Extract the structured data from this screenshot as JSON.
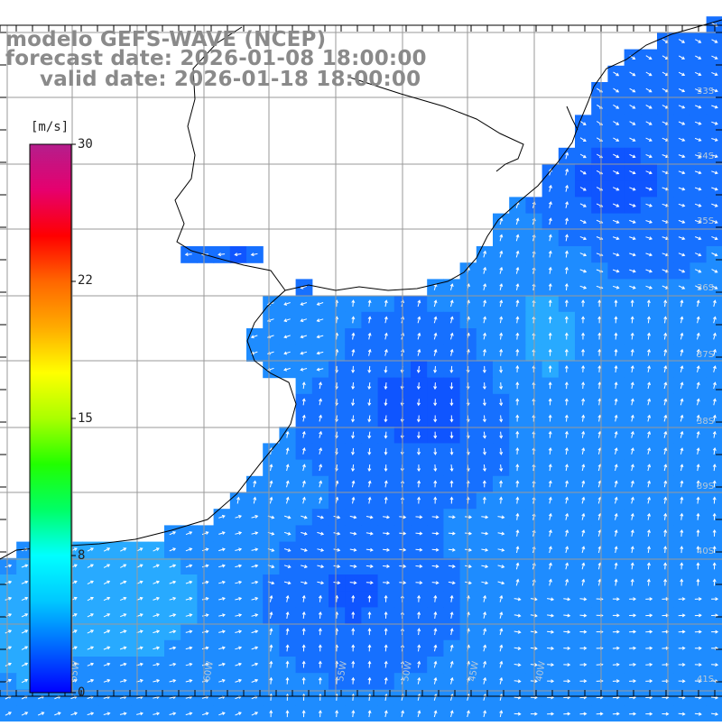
{
  "title": {
    "line1": "modelo GEFS-WAVE (NCEP)",
    "line2": "forecast date: 2026-01-08 18:00:00",
    "line3": "valid date: 2026-01-18 18:00:00"
  },
  "colorbar": {
    "unit": "[m/s]",
    "ticks": [
      "30",
      "22",
      "15",
      "8",
      "0"
    ],
    "range": [
      0,
      30
    ],
    "colors": [
      "#0000ff",
      "#0066ff",
      "#00c8ff",
      "#00ffff",
      "#00ff66",
      "#22ff00",
      "#aaff00",
      "#ffff00",
      "#ffaa00",
      "#ff6600",
      "#ff0000",
      "#e6006e",
      "#b41e8c"
    ]
  },
  "map": {
    "variable": "wind speed and direction",
    "longitude_labels": [
      "65W",
      "60W",
      "55W",
      "50W",
      "45W",
      "40W"
    ],
    "latitude_labels": [
      "33S",
      "34S",
      "35S",
      "36S",
      "37S",
      "38S",
      "39S",
      "40S",
      "41S"
    ],
    "sea_colors": [
      "#0a3cff",
      "#0f55ff",
      "#1670ff",
      "#1e8cff",
      "#28aaff",
      "#37c6ff"
    ],
    "land_color": "#ffffff",
    "coast_color": "#000000",
    "grid_color": "#9a9a9a",
    "arrow_color": "#ffffff"
  }
}
